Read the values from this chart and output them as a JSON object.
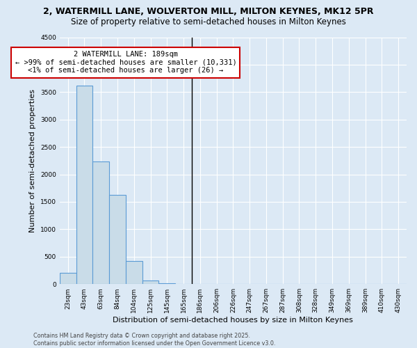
{
  "title_line1": "2, WATERMILL LANE, WOLVERTON MILL, MILTON KEYNES, MK12 5PR",
  "title_line2": "Size of property relative to semi-detached houses in Milton Keynes",
  "xlabel": "Distribution of semi-detached houses by size in Milton Keynes",
  "ylabel": "Number of semi-detached properties",
  "bar_labels": [
    "23sqm",
    "43sqm",
    "63sqm",
    "84sqm",
    "104sqm",
    "125sqm",
    "145sqm",
    "165sqm",
    "186sqm",
    "206sqm",
    "226sqm",
    "247sqm",
    "267sqm",
    "287sqm",
    "308sqm",
    "328sqm",
    "349sqm",
    "369sqm",
    "389sqm",
    "410sqm",
    "430sqm"
  ],
  "bar_values": [
    210,
    3620,
    2240,
    1630,
    420,
    60,
    10,
    5,
    0,
    0,
    0,
    0,
    0,
    0,
    0,
    0,
    0,
    0,
    0,
    0,
    0
  ],
  "bar_color": "#c9dce8",
  "bar_edge_color": "#5b9bd5",
  "property_line_label": "186sqm",
  "property_line_index": 8,
  "annotation_title": "2 WATERMILL LANE: 189sqm",
  "annotation_line1": "← >99% of semi-detached houses are smaller (10,331)",
  "annotation_line2": "<1% of semi-detached houses are larger (26) →",
  "annotation_box_color": "#ffffff",
  "annotation_box_edge": "#cc0000",
  "ylim": [
    0,
    4500
  ],
  "yticks": [
    0,
    500,
    1000,
    1500,
    2000,
    2500,
    3000,
    3500,
    4000,
    4500
  ],
  "footer_line1": "Contains HM Land Registry data © Crown copyright and database right 2025.",
  "footer_line2": "Contains public sector information licensed under the Open Government Licence v3.0.",
  "bg_color": "#dce9f5",
  "plot_bg_color": "#dce9f5",
  "grid_color": "#ffffff",
  "title_fontsize": 9,
  "subtitle_fontsize": 8.5,
  "tick_fontsize": 6.5,
  "label_fontsize": 8,
  "annotation_fontsize": 7.5
}
